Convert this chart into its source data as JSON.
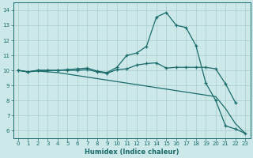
{
  "xlabel": "Humidex (Indice chaleur)",
  "bg_color": "#cce8e8",
  "grid_color": "#aacccc",
  "line_color": "#1a6b6b",
  "xlim": [
    -0.5,
    23.5
  ],
  "ylim": [
    5.5,
    14.5
  ],
  "xticks": [
    0,
    1,
    2,
    3,
    4,
    5,
    6,
    7,
    8,
    9,
    10,
    11,
    12,
    13,
    14,
    15,
    16,
    17,
    18,
    19,
    20,
    21,
    22,
    23
  ],
  "yticks": [
    6,
    7,
    8,
    9,
    10,
    11,
    12,
    13,
    14
  ],
  "line1_x": [
    0,
    1,
    2,
    3,
    4,
    5,
    6,
    7,
    8,
    9,
    10,
    11,
    12,
    13,
    14,
    15,
    16,
    17,
    18,
    19,
    20,
    21,
    22,
    23
  ],
  "line1_y": [
    10.0,
    9.9,
    10.0,
    10.0,
    10.0,
    10.05,
    10.1,
    10.15,
    9.95,
    9.85,
    10.2,
    11.0,
    11.15,
    11.6,
    13.55,
    13.85,
    13.0,
    12.85,
    11.65,
    9.15,
    8.0,
    6.3,
    6.1,
    5.8
  ],
  "line2_x": [
    0,
    1,
    2,
    3,
    4,
    5,
    6,
    7,
    8,
    9,
    10,
    11,
    12,
    13,
    14,
    15,
    16,
    17,
    18,
    19,
    20,
    21,
    22
  ],
  "line2_y": [
    10.0,
    9.9,
    10.0,
    10.0,
    10.0,
    10.0,
    10.0,
    10.05,
    9.9,
    9.8,
    10.05,
    10.1,
    10.35,
    10.45,
    10.5,
    10.15,
    10.2,
    10.2,
    10.2,
    10.2,
    10.1,
    9.1,
    7.85
  ],
  "line3_x": [
    0,
    1,
    2,
    3,
    4,
    5,
    6,
    7,
    8,
    9,
    10,
    11,
    12,
    13,
    14,
    15,
    16,
    17,
    18,
    19,
    20,
    21,
    22,
    23
  ],
  "line3_y": [
    10.0,
    9.9,
    9.95,
    9.9,
    9.85,
    9.75,
    9.65,
    9.55,
    9.45,
    9.35,
    9.25,
    9.15,
    9.05,
    8.95,
    8.85,
    8.75,
    8.65,
    8.55,
    8.45,
    8.35,
    8.25,
    7.45,
    6.45,
    5.8
  ]
}
